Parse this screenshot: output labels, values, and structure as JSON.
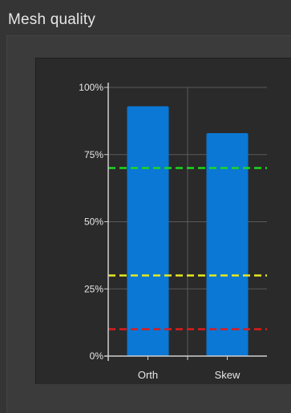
{
  "panel": {
    "title": "Mesh quality"
  },
  "chart_data": {
    "type": "bar",
    "categories": [
      "Orth",
      "Skew"
    ],
    "values": [
      93,
      83
    ],
    "ylim": [
      0,
      100
    ],
    "yticks": [
      "0%",
      "25%",
      "50%",
      "75%",
      "100%"
    ],
    "ytick_values": [
      0,
      25,
      50,
      75,
      100
    ],
    "grid": true,
    "bar_color": "#0a78d4",
    "thresholds": [
      {
        "value": 70,
        "color": "#19d91e"
      },
      {
        "value": 30,
        "color": "#e8e81c"
      },
      {
        "value": 10,
        "color": "#e01b1b"
      }
    ]
  }
}
